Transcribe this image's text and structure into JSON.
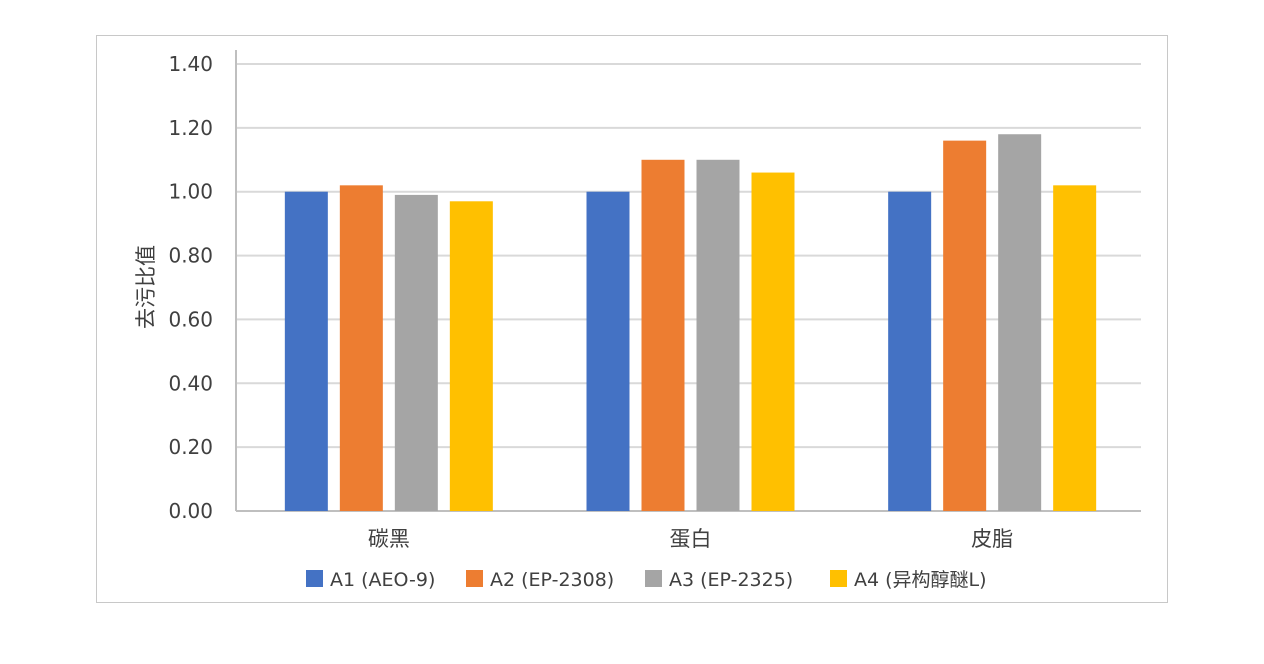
{
  "chart_data": {
    "type": "bar",
    "title": "",
    "xlabel": "",
    "ylabel": "去污比值",
    "categories": [
      "碳黑",
      "蛋白",
      "皮脂"
    ],
    "series": [
      {
        "name": "A1 (AEO-9)",
        "values": [
          1.0,
          1.0,
          1.0
        ],
        "color": "#4472c4"
      },
      {
        "name": "A2 (EP-2308)",
        "values": [
          1.02,
          1.1,
          1.16
        ],
        "color": "#ed7d31"
      },
      {
        "name": "A3 (EP-2325)",
        "values": [
          0.99,
          1.1,
          1.18
        ],
        "color": "#a5a5a5"
      },
      {
        "name": "A4 (异构醇醚L)",
        "values": [
          0.97,
          1.06,
          1.02
        ],
        "color": "#ffc000"
      }
    ],
    "ylim": [
      0,
      1.4
    ],
    "yticks": [
      "0.00",
      "0.20",
      "0.40",
      "0.60",
      "0.80",
      "1.00",
      "1.20",
      "1.40"
    ],
    "grid": true,
    "legend_position": "bottom"
  }
}
